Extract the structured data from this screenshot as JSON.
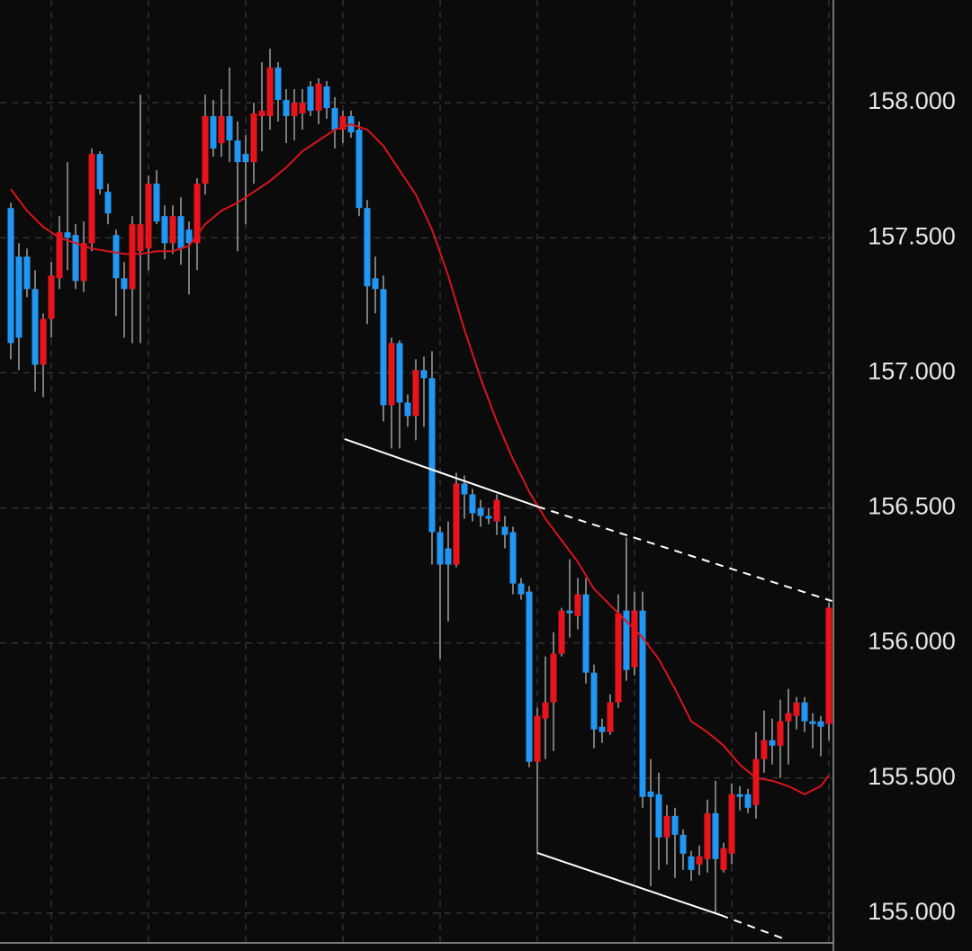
{
  "chart_data": {
    "type": "candlestick",
    "up_color": "#e8141c",
    "down_color": "#2196f3",
    "wick_color": "#a0a0a0",
    "open": [
      157.61,
      157.43,
      157.43,
      157.31,
      157.03,
      157.2,
      157.35,
      157.52,
      157.51,
      157.34,
      157.48,
      157.81,
      157.67,
      157.51,
      157.35,
      157.31,
      157.45,
      157.46,
      157.7,
      157.58,
      157.48,
      157.58,
      157.53,
      157.48,
      157.7,
      157.95,
      157.85,
      157.95,
      157.86,
      157.81,
      157.78,
      157.95,
      157.95,
      158.13,
      158.01,
      157.95,
      157.96,
      158.06,
      157.97,
      158.06,
      157.98,
      157.9,
      157.95,
      157.9,
      157.61,
      157.35,
      157.31,
      156.88,
      157.11,
      156.89,
      156.84,
      157.01,
      156.98,
      156.41,
      156.35,
      156.29,
      156.59,
      156.55,
      156.5,
      156.47,
      156.45,
      156.43,
      156.41,
      156.22,
      156.19,
      155.56,
      155.72,
      155.78,
      155.96,
      156.12,
      156.1,
      156.18,
      155.89,
      155.69,
      155.67,
      155.78,
      156.12,
      155.91,
      156.12,
      155.45,
      155.44,
      155.28,
      155.36,
      155.29,
      155.21,
      155.18,
      155.2,
      155.37,
      155.16,
      155.22,
      155.44,
      155.44,
      155.4,
      155.57,
      155.64,
      155.62,
      155.71,
      155.73,
      155.78,
      155.71,
      155.71,
      155.7
    ],
    "high": [
      157.63,
      157.48,
      157.46,
      157.38,
      157.22,
      157.41,
      157.58,
      157.78,
      157.55,
      157.56,
      157.83,
      157.82,
      157.7,
      157.53,
      157.41,
      157.58,
      158.03,
      157.73,
      157.75,
      157.62,
      157.62,
      157.65,
      157.56,
      157.72,
      158.03,
      158.01,
      158.05,
      158.13,
      157.93,
      157.88,
      158.0,
      158.15,
      158.2,
      158.15,
      158.05,
      158.05,
      158.05,
      158.08,
      158.09,
      158.08,
      158.02,
      157.97,
      157.97,
      157.93,
      157.64,
      157.43,
      157.36,
      157.13,
      157.12,
      156.92,
      157.05,
      157.06,
      157.08,
      156.43,
      156.45,
      156.63,
      156.62,
      156.57,
      156.53,
      156.5,
      156.55,
      156.47,
      156.43,
      156.24,
      156.21,
      155.76,
      155.95,
      156.04,
      156.13,
      156.31,
      156.24,
      156.24,
      155.92,
      155.72,
      155.81,
      156.18,
      156.39,
      156.19,
      156.19,
      155.57,
      155.52,
      155.4,
      155.39,
      155.31,
      155.23,
      155.25,
      155.42,
      155.49,
      155.26,
      155.48,
      155.47,
      155.46,
      155.67,
      155.75,
      155.72,
      155.79,
      155.83,
      155.8,
      155.8,
      155.74,
      155.73,
      156.15
    ],
    "low": [
      157.05,
      157.01,
      157.28,
      156.93,
      156.91,
      157.13,
      157.31,
      157.38,
      157.31,
      157.3,
      157.45,
      157.66,
      157.55,
      157.21,
      157.13,
      157.11,
      157.11,
      157.38,
      157.55,
      157.42,
      157.44,
      157.4,
      157.29,
      157.38,
      157.66,
      157.8,
      157.8,
      157.78,
      157.45,
      157.55,
      157.7,
      157.82,
      157.9,
      157.93,
      157.85,
      157.86,
      157.9,
      157.95,
      157.92,
      157.94,
      157.83,
      157.85,
      157.87,
      157.58,
      157.18,
      157.22,
      156.82,
      156.72,
      156.72,
      156.8,
      156.75,
      156.8,
      156.29,
      155.94,
      156.08,
      156.28,
      156.46,
      156.45,
      156.43,
      156.44,
      156.4,
      156.35,
      156.18,
      156.16,
      155.54,
      155.22,
      155.57,
      155.6,
      155.95,
      156.02,
      156.05,
      155.85,
      155.61,
      155.63,
      155.66,
      155.76,
      155.86,
      155.88,
      155.39,
      155.1,
      155.16,
      155.18,
      155.13,
      155.16,
      155.12,
      155.14,
      155.15,
      155.0,
      155.15,
      155.18,
      155.38,
      155.37,
      155.35,
      155.52,
      155.55,
      155.5,
      155.55,
      155.68,
      155.67,
      155.61,
      155.58,
      155.64
    ],
    "close": [
      157.11,
      157.13,
      157.31,
      157.03,
      157.2,
      157.36,
      157.52,
      157.5,
      157.34,
      157.48,
      157.81,
      157.68,
      157.59,
      157.35,
      157.31,
      157.55,
      157.55,
      157.7,
      157.56,
      157.48,
      157.58,
      157.46,
      157.48,
      157.7,
      157.95,
      157.83,
      157.95,
      157.86,
      157.78,
      157.78,
      157.96,
      157.97,
      158.13,
      158.01,
      157.95,
      158.0,
      158.0,
      157.97,
      158.07,
      157.98,
      157.9,
      157.95,
      157.89,
      157.61,
      157.32,
      157.31,
      156.88,
      157.11,
      156.89,
      156.84,
      157.01,
      156.98,
      156.41,
      156.29,
      156.29,
      156.59,
      156.55,
      156.48,
      156.47,
      156.46,
      156.53,
      156.4,
      156.22,
      156.18,
      155.56,
      155.73,
      155.78,
      155.96,
      156.12,
      156.11,
      156.18,
      155.89,
      155.68,
      155.67,
      155.78,
      156.11,
      155.9,
      156.12,
      155.43,
      155.43,
      155.28,
      155.36,
      155.29,
      155.22,
      155.16,
      155.21,
      155.37,
      155.2,
      155.24,
      155.44,
      155.43,
      155.39,
      155.57,
      155.64,
      155.62,
      155.71,
      155.74,
      155.78,
      155.71,
      155.7,
      155.69,
      156.13
    ],
    "ma": {
      "color": "#d8141c",
      "x": [
        0,
        2,
        4,
        6,
        8,
        10,
        12,
        14,
        16,
        18,
        20,
        22,
        24,
        26,
        28,
        30,
        32,
        34,
        36,
        38,
        40,
        42,
        44,
        46,
        48,
        50,
        52,
        54,
        56,
        58,
        60,
        62,
        64,
        66,
        68,
        70,
        72,
        74,
        76,
        78,
        80,
        82,
        84,
        86,
        88,
        90,
        92,
        94,
        96,
        98,
        100,
        101
      ],
      "values": [
        157.68,
        157.6,
        157.54,
        157.5,
        157.48,
        157.46,
        157.45,
        157.44,
        157.44,
        157.45,
        157.45,
        157.47,
        157.55,
        157.6,
        157.63,
        157.67,
        157.71,
        157.76,
        157.82,
        157.86,
        157.9,
        157.92,
        157.9,
        157.84,
        157.75,
        157.66,
        157.53,
        157.36,
        157.16,
        156.98,
        156.82,
        156.68,
        156.56,
        156.46,
        156.38,
        156.3,
        156.2,
        156.14,
        156.08,
        156.02,
        155.94,
        155.83,
        155.71,
        155.67,
        155.62,
        155.55,
        155.5,
        155.49,
        155.47,
        155.44,
        155.47,
        155.51
      ]
    },
    "trendlines": [
      {
        "points": [
          [
            41.2,
            156.755
          ],
          [
            65,
            156.505
          ]
        ],
        "dashed": false
      },
      {
        "points": [
          [
            65,
            156.505
          ],
          [
            101.4,
            156.155
          ]
        ],
        "dashed": true
      },
      {
        "points": [
          [
            65,
            155.223
          ],
          [
            87.6,
            154.993
          ]
        ],
        "dashed": false
      },
      {
        "points": [
          [
            87.6,
            154.993
          ],
          [
            95.9,
            154.9
          ]
        ],
        "dashed": true
      }
    ],
    "xlim": [
      -1.333,
      101.444
    ],
    "xticks": [
      5,
      17,
      29,
      41,
      53,
      65,
      77,
      89,
      101
    ],
    "ylim": [
      154.893,
      158.38
    ],
    "yticks": [
      {
        "value": 155,
        "label": "155.000"
      },
      {
        "value": 155.5,
        "label": "155.500"
      },
      {
        "value": 156,
        "label": "156.000"
      },
      {
        "value": 156.5,
        "label": "156.500"
      },
      {
        "value": 157,
        "label": "157.000"
      },
      {
        "value": 157.5,
        "label": "157.500"
      },
      {
        "value": 158,
        "label": "158.000"
      }
    ],
    "grid": true
  }
}
